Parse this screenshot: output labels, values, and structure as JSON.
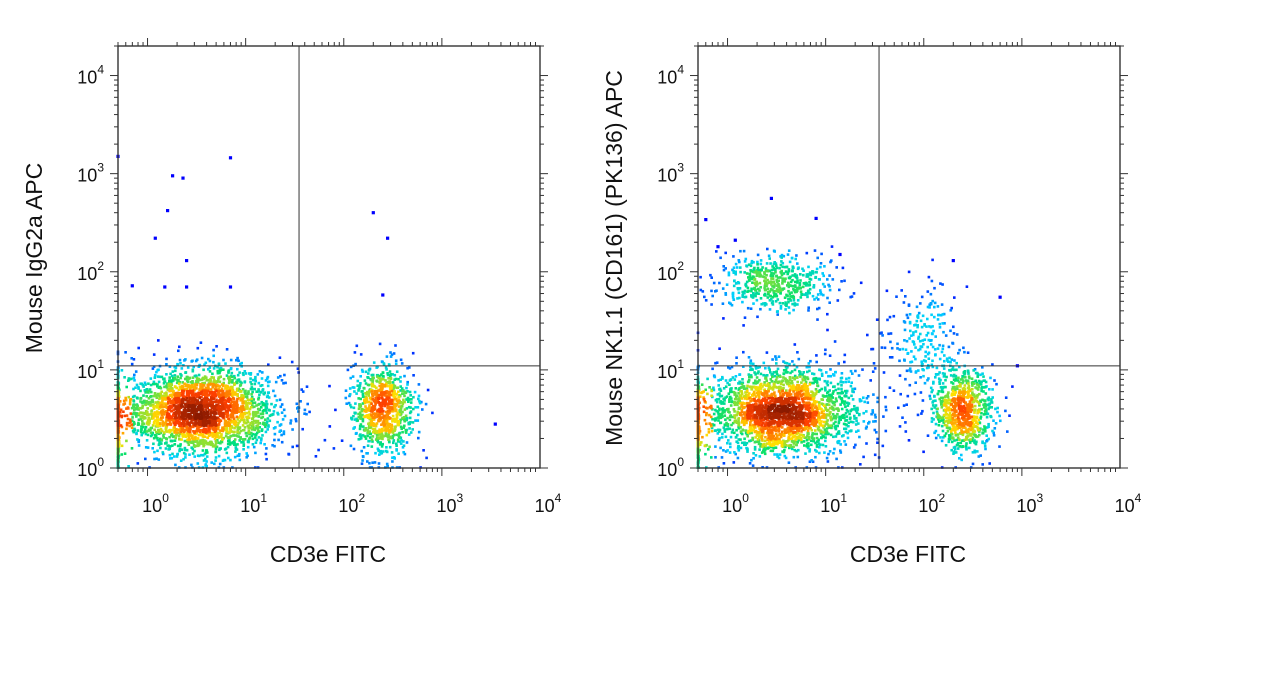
{
  "chart_data": [
    {
      "type": "scatter",
      "subtype": "flow-cytometry density dot plot",
      "xlabel": "CD3e FITC",
      "ylabel": "Mouse IgG2a APC",
      "x_scale": "log",
      "y_scale": "log",
      "xlim": [
        0.5,
        10000
      ],
      "ylim": [
        1,
        20000
      ],
      "x_ticks": [
        {
          "base": "10",
          "exp": "0",
          "value": 1
        },
        {
          "base": "10",
          "exp": "1",
          "value": 10
        },
        {
          "base": "10",
          "exp": "2",
          "value": 100
        },
        {
          "base": "10",
          "exp": "3",
          "value": 1000
        },
        {
          "base": "10",
          "exp": "4",
          "value": 10000
        }
      ],
      "y_ticks": [
        {
          "base": "10",
          "exp": "0",
          "value": 1
        },
        {
          "base": "10",
          "exp": "1",
          "value": 10
        },
        {
          "base": "10",
          "exp": "2",
          "value": 100
        },
        {
          "base": "10",
          "exp": "3",
          "value": 1000
        },
        {
          "base": "10",
          "exp": "4",
          "value": 10000
        }
      ],
      "quadrant_gate": {
        "x": 35,
        "y": 11
      },
      "color_scale": [
        "#0000ff",
        "#00d0ff",
        "#00e070",
        "#ffe000",
        "#ff4000",
        "#8b1a00"
      ],
      "populations": [
        {
          "cx": 3.5,
          "cy": 3.8,
          "sx": 0.4,
          "sy": 0.22,
          "n": 2600
        },
        {
          "cx": 250,
          "cy": 4.0,
          "sx": 0.16,
          "sy": 0.22,
          "n": 900
        },
        {
          "cx": 0.5,
          "cy": 3.0,
          "sx": 0.005,
          "sy": 0.25,
          "n": 300
        }
      ],
      "sparse_points": [
        [
          0.5,
          1500
        ],
        [
          7,
          1450
        ],
        [
          1.8,
          950
        ],
        [
          2.3,
          900
        ],
        [
          1.6,
          420
        ],
        [
          200,
          400
        ],
        [
          1.2,
          220
        ],
        [
          280,
          220
        ],
        [
          2.5,
          130
        ],
        [
          0.7,
          72
        ],
        [
          1.5,
          70
        ],
        [
          2.5,
          70
        ],
        [
          7,
          70
        ],
        [
          250,
          58
        ],
        [
          3500,
          2.8
        ]
      ]
    },
    {
      "type": "scatter",
      "subtype": "flow-cytometry density dot plot",
      "xlabel": "CD3e FITC",
      "ylabel": "Mouse NK1.1 (CD161) (PK136) APC",
      "x_scale": "log",
      "y_scale": "log",
      "xlim": [
        0.5,
        10000
      ],
      "ylim": [
        1,
        20000
      ],
      "x_ticks": [
        {
          "base": "10",
          "exp": "0",
          "value": 1
        },
        {
          "base": "10",
          "exp": "1",
          "value": 10
        },
        {
          "base": "10",
          "exp": "2",
          "value": 100
        },
        {
          "base": "10",
          "exp": "3",
          "value": 1000
        },
        {
          "base": "10",
          "exp": "4",
          "value": 10000
        }
      ],
      "y_ticks": [
        {
          "base": "10",
          "exp": "0",
          "value": 1
        },
        {
          "base": "10",
          "exp": "1",
          "value": 10
        },
        {
          "base": "10",
          "exp": "2",
          "value": 100
        },
        {
          "base": "10",
          "exp": "3",
          "value": 1000
        },
        {
          "base": "10",
          "exp": "4",
          "value": 10000
        }
      ],
      "quadrant_gate": {
        "x": 35,
        "y": 11
      },
      "color_scale": [
        "#0000ff",
        "#00d0ff",
        "#00e070",
        "#ffe000",
        "#ff4000",
        "#8b1a00"
      ],
      "populations": [
        {
          "cx": 3.5,
          "cy": 3.8,
          "sx": 0.4,
          "sy": 0.22,
          "n": 2400
        },
        {
          "cx": 250,
          "cy": 3.8,
          "sx": 0.16,
          "sy": 0.22,
          "n": 800
        },
        {
          "cx": 3.0,
          "cy": 75,
          "sx": 0.3,
          "sy": 0.14,
          "n": 520
        },
        {
          "cx": 100,
          "cy": 20,
          "sx": 0.18,
          "sy": 0.3,
          "n": 220
        },
        {
          "cx": 0.5,
          "cy": 3.0,
          "sx": 0.005,
          "sy": 0.25,
          "n": 280
        }
      ],
      "sparse_points": [
        [
          2.8,
          560
        ],
        [
          8,
          350
        ],
        [
          0.6,
          340
        ],
        [
          14,
          150
        ],
        [
          200,
          130
        ],
        [
          600,
          55
        ],
        [
          900,
          11
        ],
        [
          1.2,
          210
        ],
        [
          0.8,
          180
        ]
      ]
    }
  ]
}
